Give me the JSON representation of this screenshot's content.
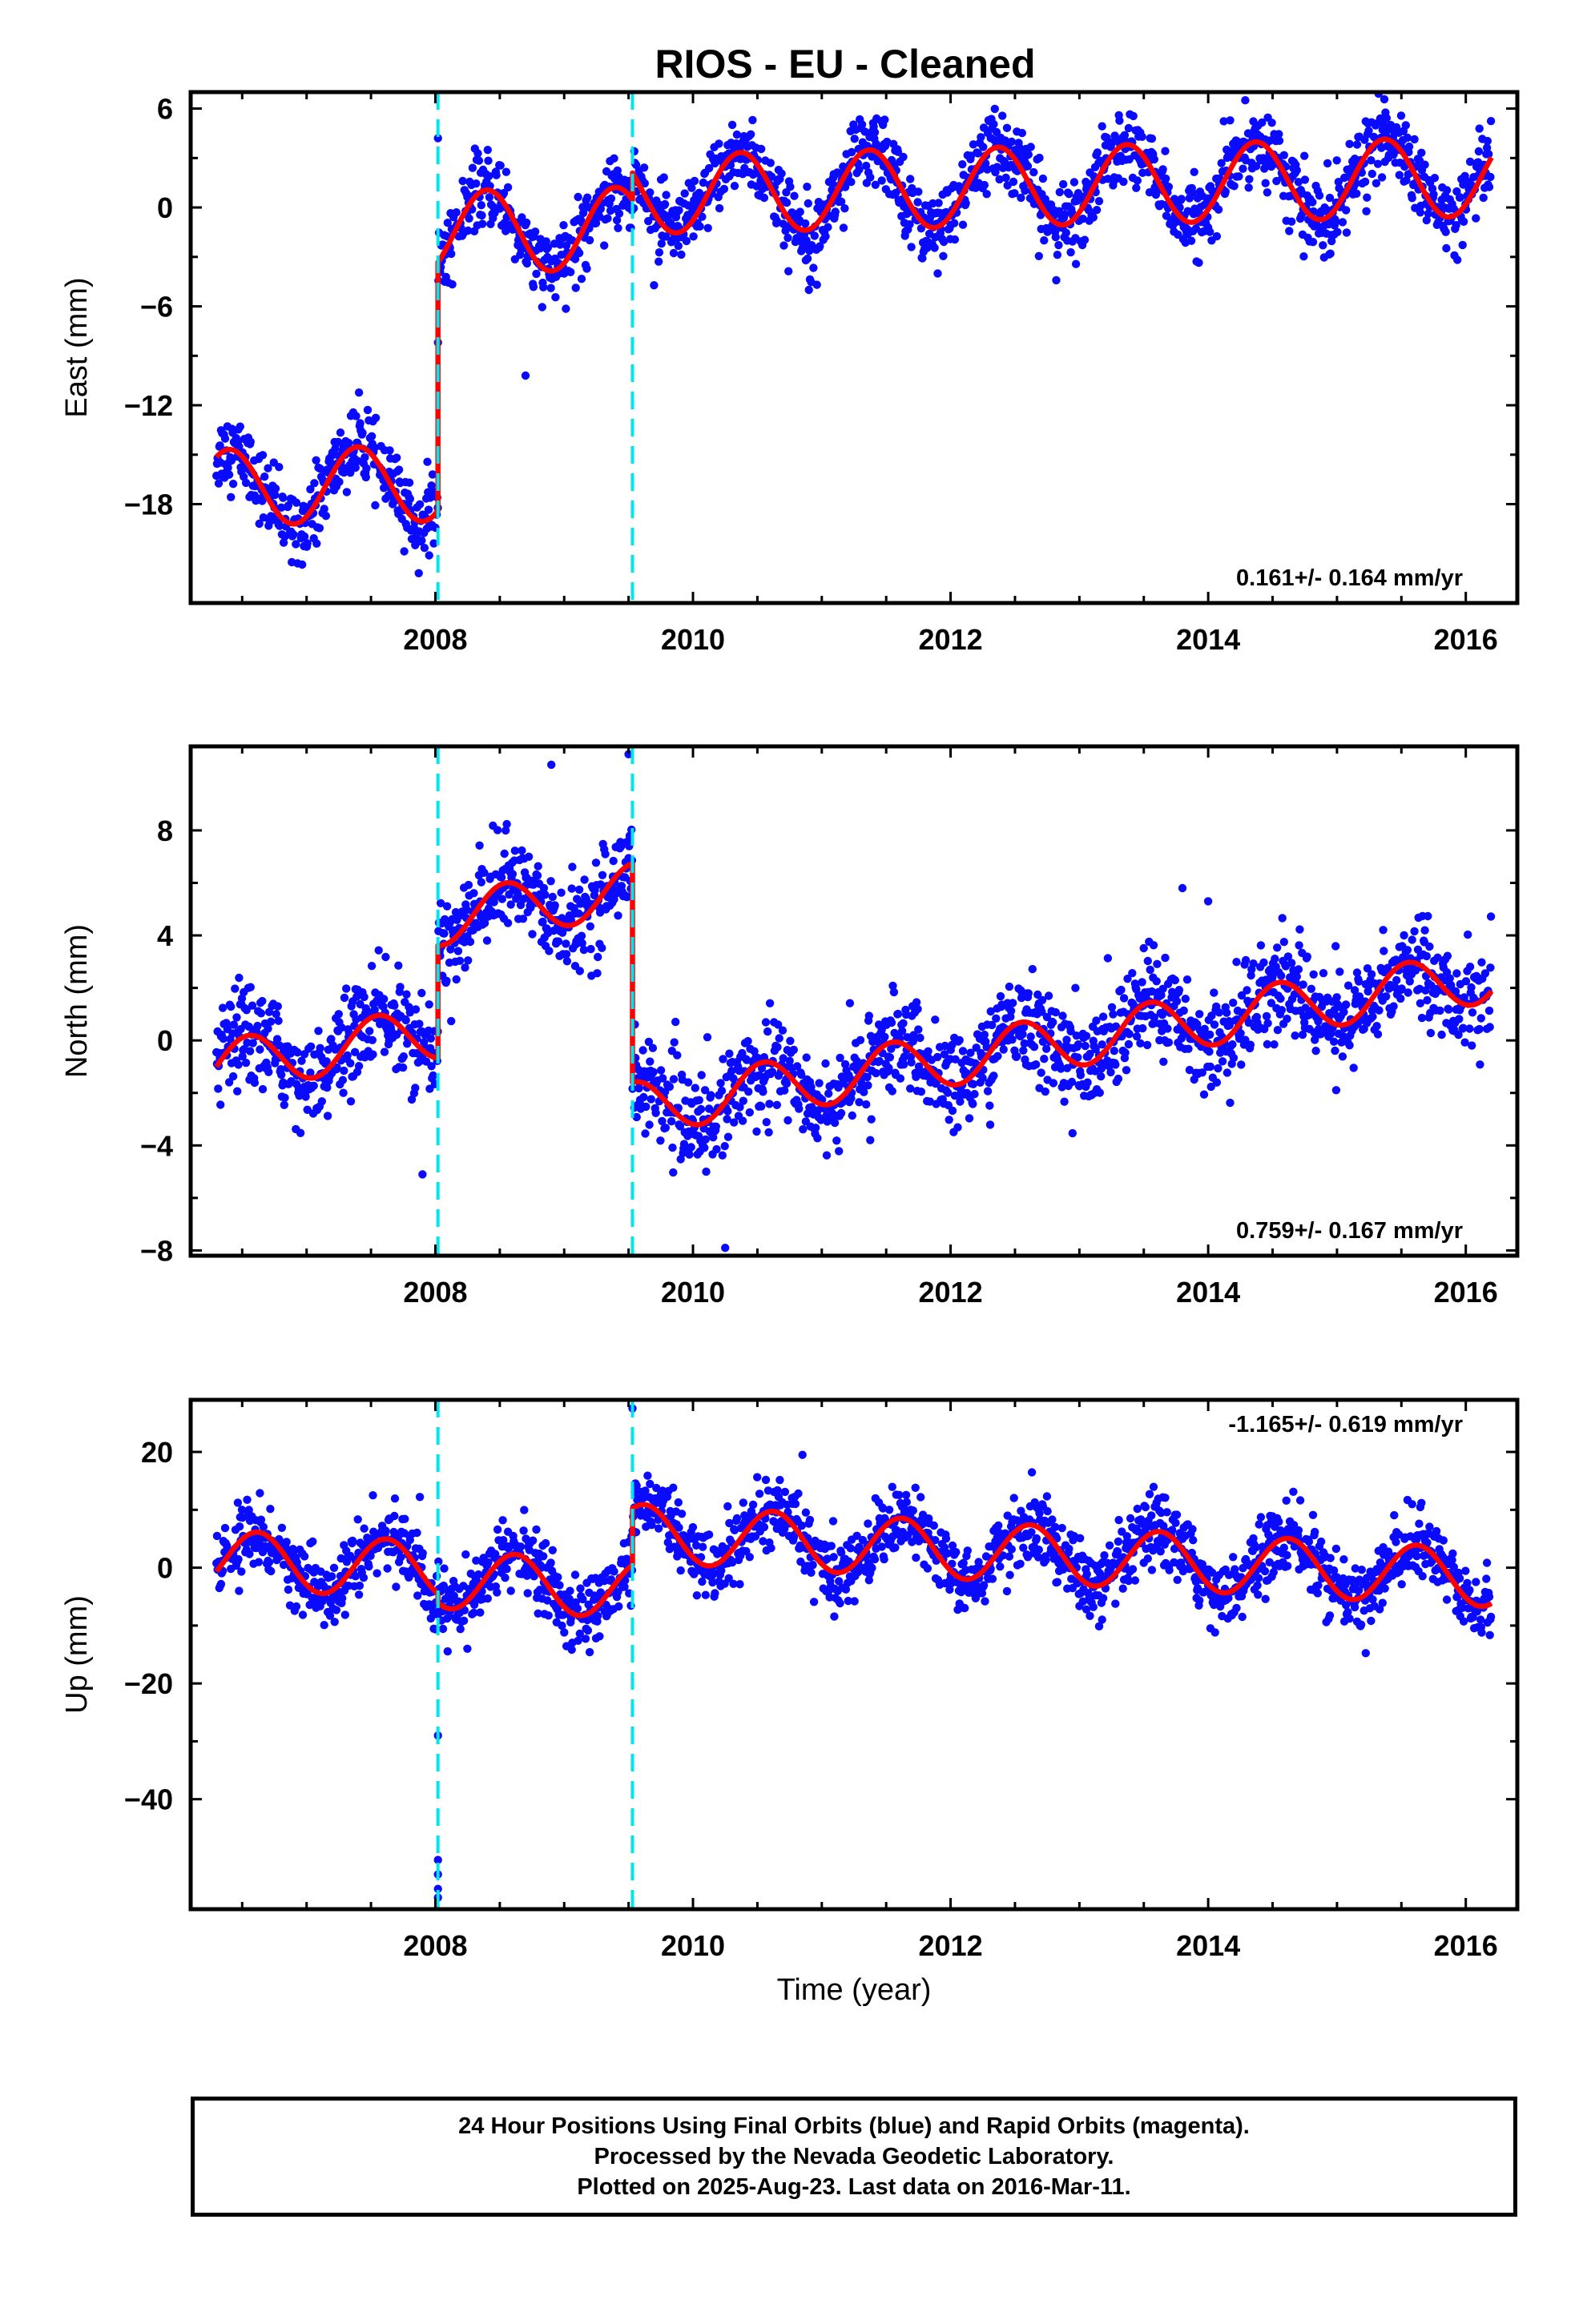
{
  "title": "RIOS  - EU - Cleaned",
  "colors": {
    "final_orbits": "#0a0aff",
    "model": "#ff0000",
    "breaks": "#00e5ee",
    "frame": "#000000"
  },
  "footer": {
    "line1": "24 Hour Positions Using Final Orbits (blue) and Rapid Orbits (magenta).",
    "line2": "Processed by the Nevada Geodetic Laboratory.",
    "line3": "Plotted on 2025-Aug-23. Last data on 2016-Mar-11."
  },
  "chart_data": [
    {
      "type": "scatter",
      "component": "East",
      "ylabel": "East (mm)",
      "xlabel": "",
      "xlim": [
        2006.1,
        2016.4
      ],
      "ylim": [
        -24,
        7
      ],
      "xticks": [
        2008,
        2010,
        2012,
        2014,
        2016
      ],
      "yticks": [
        6,
        0,
        -6,
        -12,
        -18
      ],
      "rate_label": "0.161+/- 0.164 mm/yr",
      "rate_position": "bottom-right",
      "break_lines": [
        2008.02,
        2009.53
      ],
      "model": {
        "segments": [
          {
            "x0": 2006.3,
            "x1": 2008.02,
            "offset": -17.0,
            "slope": 0.161,
            "amplitude": 2.3,
            "phase_year": 2006.4
          },
          {
            "x0": 2008.02,
            "x1": 2009.53,
            "offset": -1.5,
            "slope": 0.161,
            "amplitude": 2.5,
            "phase_year": 2008.4
          },
          {
            "x0": 2009.53,
            "x1": 2016.2,
            "offset": 0.8,
            "slope": 0.161,
            "amplitude": 2.4,
            "phase_year": 2010.37
          }
        ]
      },
      "scatter": {
        "sigma": 1.1,
        "step_years": 0.0045,
        "outliers": [
          [
            2008.02,
            4.2
          ],
          [
            2008.02,
            -8.2
          ],
          [
            2010.9,
            -5.0
          ],
          [
            2008.7,
            -10.2
          ],
          [
            2011.9,
            -4.0
          ]
        ]
      }
    },
    {
      "type": "scatter",
      "component": "North",
      "ylabel": "North (mm)",
      "xlabel": "",
      "xlim": [
        2006.1,
        2016.4
      ],
      "ylim": [
        -8.2,
        11.2
      ],
      "xticks": [
        2008,
        2010,
        2012,
        2014,
        2016
      ],
      "yticks": [
        8,
        4,
        0,
        -4,
        -8
      ],
      "rate_label": "0.759+/- 0.167 mm/yr",
      "rate_position": "bottom-right",
      "break_lines": [
        2008.02,
        2009.53
      ],
      "model": {
        "segments": [
          {
            "x0": 2006.3,
            "x1": 2008.02,
            "offset": -1.0,
            "slope": 0.759,
            "amplitude": 1.0,
            "phase_year": 2006.55
          },
          {
            "x0": 2008.02,
            "x1": 2009.53,
            "offset": 4.6,
            "slope": 0.759,
            "amplitude": 1.0,
            "phase_year": 2008.55
          },
          {
            "x0": 2009.53,
            "x1": 2016.2,
            "offset": -2.6,
            "slope": 0.759,
            "amplitude": 1.0,
            "phase_year": 2010.55
          }
        ]
      },
      "scatter": {
        "sigma": 0.9,
        "step_years": 0.0045,
        "outliers": [
          [
            2007.9,
            -5.1
          ],
          [
            2013.8,
            5.8
          ],
          [
            2014.0,
            5.3
          ],
          [
            2010.25,
            -7.9
          ],
          [
            2009.5,
            10.9
          ],
          [
            2008.9,
            10.5
          ]
        ]
      }
    },
    {
      "type": "scatter",
      "component": "Up",
      "ylabel": "Up (mm)",
      "xlabel": "Time (year)",
      "xlim": [
        2006.1,
        2016.4
      ],
      "ylim": [
        -59,
        29
      ],
      "xticks": [
        2008,
        2010,
        2012,
        2014,
        2016
      ],
      "yticks": [
        20,
        0,
        -20,
        -40
      ],
      "rate_label": "-1.165+/- 0.619 mm/yr",
      "rate_position": "top-right",
      "break_lines": [
        2008.02,
        2009.53
      ],
      "model": {
        "segments": [
          {
            "x0": 2006.3,
            "x1": 2008.02,
            "offset": 1.5,
            "slope": -1.165,
            "amplitude": 5.0,
            "phase_year": 2006.62
          },
          {
            "x0": 2008.02,
            "x1": 2009.53,
            "offset": -2.0,
            "slope": -1.165,
            "amplitude": 5.0,
            "phase_year": 2008.62
          },
          {
            "x0": 2009.53,
            "x1": 2016.2,
            "offset": 6.0,
            "slope": -1.165,
            "amplitude": 5.0,
            "phase_year": 2009.62
          }
        ]
      },
      "scatter": {
        "sigma": 3.0,
        "step_years": 0.0045,
        "outliers": [
          [
            2009.53,
            27.5
          ],
          [
            2008.02,
            -29.0
          ],
          [
            2008.02,
            -50.5
          ],
          [
            2008.02,
            -53.0
          ],
          [
            2008.02,
            -55.5
          ],
          [
            2008.02,
            -57.0
          ],
          [
            2010.85,
            19.5
          ]
        ]
      }
    }
  ]
}
